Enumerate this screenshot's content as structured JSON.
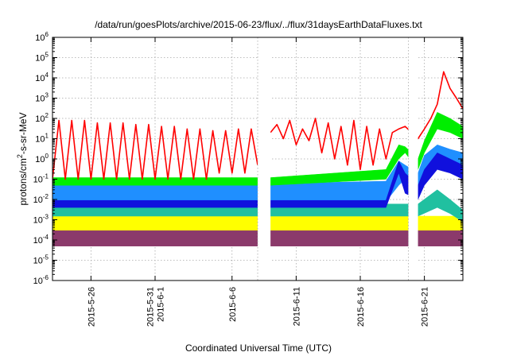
{
  "chart_data": {
    "type": "line",
    "title": "/data/run/goesPlots/archive/2015-06-23/flux/../flux/31daysEarthDataFluxes.txt",
    "xlabel": "Coordinated Universal Time (UTC)",
    "ylabel_parts": [
      "protons/cm",
      "2",
      "-s-sr-MeV"
    ],
    "yscale": "log",
    "ylim": [
      1e-06,
      1000000.0
    ],
    "xlim": [
      "2015-05-23",
      "2015-06-24"
    ],
    "grid": true,
    "y_ticks": [
      {
        "value": 1e-06,
        "base": "10",
        "exp": "-6"
      },
      {
        "value": 1e-05,
        "base": "10",
        "exp": "-5"
      },
      {
        "value": 0.0001,
        "base": "10",
        "exp": "-4"
      },
      {
        "value": 0.001,
        "base": "10",
        "exp": "-3"
      },
      {
        "value": 0.01,
        "base": "10",
        "exp": "-2"
      },
      {
        "value": 0.1,
        "base": "10",
        "exp": "-1"
      },
      {
        "value": 1,
        "base": "10",
        "exp": "0"
      },
      {
        "value": 10.0,
        "base": "10",
        "exp": "1"
      },
      {
        "value": 100.0,
        "base": "10",
        "exp": "2"
      },
      {
        "value": 1000.0,
        "base": "10",
        "exp": "3"
      },
      {
        "value": 10000.0,
        "base": "10",
        "exp": "4"
      },
      {
        "value": 100000.0,
        "base": "10",
        "exp": "5"
      },
      {
        "value": 1000000.0,
        "base": "10",
        "exp": "6"
      }
    ],
    "x_ticks": [
      {
        "date": "2015-05-26",
        "lines": [
          "2015-5-26"
        ]
      },
      {
        "date": "2015-05-31",
        "lines": [
          "2015-5-31",
          "2015-6-1"
        ]
      },
      {
        "date": "2015-06-06",
        "lines": [
          "2015-6-6"
        ]
      },
      {
        "date": "2015-06-11",
        "lines": [
          "2015-6-11"
        ]
      },
      {
        "date": "2015-06-16",
        "lines": [
          "2015-6-16"
        ]
      },
      {
        "date": "2015-06-21",
        "lines": [
          "2015-6-21"
        ]
      }
    ],
    "data_gaps": [
      [
        "2015-06-08",
        "2015-06-09"
      ],
      [
        "2015-06-19T18:00",
        "2015-06-20T12:00"
      ]
    ],
    "series": [
      {
        "color": "#8b3a6b",
        "style": "band",
        "points": [
          {
            "x": "2015-05-23",
            "lo": 5e-05,
            "hi": 0.0004
          },
          {
            "x": "2015-06-08",
            "lo": 5e-05,
            "hi": 0.0004
          },
          {
            "x": "2015-06-09",
            "lo": 5e-05,
            "hi": 0.0004
          },
          {
            "x": "2015-06-19T12:00",
            "lo": 5e-05,
            "hi": 0.0004
          },
          {
            "x": "2015-06-20T12:00",
            "lo": 5e-05,
            "hi": 0.0004
          },
          {
            "x": "2015-06-24",
            "lo": 5e-05,
            "hi": 0.0004
          }
        ]
      },
      {
        "color": "#ffff00",
        "style": "band",
        "points": [
          {
            "x": "2015-05-23",
            "lo": 0.0003,
            "hi": 0.0015
          },
          {
            "x": "2015-06-08",
            "lo": 0.0003,
            "hi": 0.0015
          },
          {
            "x": "2015-06-09",
            "lo": 0.0003,
            "hi": 0.0015
          },
          {
            "x": "2015-06-19T12:00",
            "lo": 0.0003,
            "hi": 0.0015
          },
          {
            "x": "2015-06-20T12:00",
            "lo": 0.0003,
            "hi": 0.0015
          },
          {
            "x": "2015-06-24",
            "lo": 0.0003,
            "hi": 0.0015
          }
        ]
      },
      {
        "color": "#20c0a0",
        "style": "band",
        "points": [
          {
            "x": "2015-05-23",
            "lo": 0.0015,
            "hi": 0.006
          },
          {
            "x": "2015-06-08",
            "lo": 0.0015,
            "hi": 0.006
          },
          {
            "x": "2015-06-09",
            "lo": 0.0015,
            "hi": 0.006
          },
          {
            "x": "2015-06-19T12:00",
            "lo": 0.0015,
            "hi": 0.006
          },
          {
            "x": "2015-06-20T12:00",
            "lo": 0.0015,
            "hi": 0.006
          },
          {
            "x": "2015-06-22",
            "lo": 0.004,
            "hi": 0.03
          },
          {
            "x": "2015-06-23",
            "lo": 0.002,
            "hi": 0.01
          },
          {
            "x": "2015-06-24",
            "lo": 0.0008,
            "hi": 0.003
          }
        ]
      },
      {
        "color": "#1f8fff",
        "style": "band",
        "points": [
          {
            "x": "2015-05-23",
            "lo": 0.006,
            "hi": 0.06
          },
          {
            "x": "2015-06-08",
            "lo": 0.006,
            "hi": 0.06
          },
          {
            "x": "2015-06-09",
            "lo": 0.006,
            "hi": 0.06
          },
          {
            "x": "2015-06-18",
            "lo": 0.008,
            "hi": 0.08
          },
          {
            "x": "2015-06-19",
            "lo": 0.05,
            "hi": 0.8
          },
          {
            "x": "2015-06-19T12:00",
            "lo": 0.1,
            "hi": 0.5
          },
          {
            "x": "2015-06-20T12:00",
            "lo": 0.05,
            "hi": 0.2
          },
          {
            "x": "2015-06-21",
            "lo": 0.3,
            "hi": 1.5
          },
          {
            "x": "2015-06-22",
            "lo": 1,
            "hi": 5
          },
          {
            "x": "2015-06-23",
            "lo": 0.5,
            "hi": 3
          },
          {
            "x": "2015-06-24",
            "lo": 0.5,
            "hi": 2
          }
        ]
      },
      {
        "color": "#1010dd",
        "style": "band",
        "points": [
          {
            "x": "2015-05-23",
            "lo": 0.004,
            "hi": 0.009
          },
          {
            "x": "2015-06-08",
            "lo": 0.004,
            "hi": 0.009
          },
          {
            "x": "2015-06-09",
            "lo": 0.004,
            "hi": 0.009
          },
          {
            "x": "2015-06-18",
            "lo": 0.004,
            "hi": 0.009
          },
          {
            "x": "2015-06-19",
            "lo": 0.2,
            "hi": 0.8
          },
          {
            "x": "2015-06-19T12:00",
            "lo": 0.02,
            "hi": 0.2
          },
          {
            "x": "2015-06-20T12:00",
            "lo": 0.01,
            "hi": 0.05
          },
          {
            "x": "2015-06-21",
            "lo": 0.05,
            "hi": 0.3
          },
          {
            "x": "2015-06-22",
            "lo": 0.3,
            "hi": 2
          },
          {
            "x": "2015-06-23",
            "lo": 0.2,
            "hi": 1
          },
          {
            "x": "2015-06-24",
            "lo": 0.1,
            "hi": 0.5
          }
        ]
      },
      {
        "color": "#00ee00",
        "style": "band",
        "points": [
          {
            "x": "2015-05-23",
            "lo": 0.05,
            "hi": 0.12
          },
          {
            "x": "2015-06-08",
            "lo": 0.05,
            "hi": 0.12
          },
          {
            "x": "2015-06-09",
            "lo": 0.05,
            "hi": 0.12
          },
          {
            "x": "2015-06-18",
            "lo": 0.1,
            "hi": 0.3
          },
          {
            "x": "2015-06-19",
            "lo": 1,
            "hi": 5
          },
          {
            "x": "2015-06-19T12:00",
            "lo": 2,
            "hi": 4
          },
          {
            "x": "2015-06-20T12:00",
            "lo": 0.3,
            "hi": 1
          },
          {
            "x": "2015-06-21",
            "lo": 2,
            "hi": 8
          },
          {
            "x": "2015-06-22",
            "lo": 30,
            "hi": 200
          },
          {
            "x": "2015-06-23",
            "lo": 20,
            "hi": 100
          },
          {
            "x": "2015-06-24",
            "lo": 10,
            "hi": 40
          }
        ]
      },
      {
        "color": "#ff0000",
        "style": "line",
        "x": [
          "2015-05-23",
          "2015-05-23T12:00",
          "2015-05-24",
          "2015-05-24T12:00",
          "2015-05-25",
          "2015-05-25T12:00",
          "2015-05-26",
          "2015-05-26T12:00",
          "2015-05-27",
          "2015-05-27T12:00",
          "2015-05-28",
          "2015-05-28T12:00",
          "2015-05-29",
          "2015-05-29T12:00",
          "2015-05-30",
          "2015-05-30T12:00",
          "2015-05-31",
          "2015-05-31T12:00",
          "2015-06-01",
          "2015-06-01T12:00",
          "2015-06-02",
          "2015-06-02T12:00",
          "2015-06-03",
          "2015-06-03T12:00",
          "2015-06-04",
          "2015-06-04T12:00",
          "2015-06-05",
          "2015-06-05T12:00",
          "2015-06-06",
          "2015-06-06T12:00",
          "2015-06-07",
          "2015-06-07T12:00",
          "2015-06-08",
          null,
          "2015-06-09",
          "2015-06-09T12:00",
          "2015-06-10",
          "2015-06-10T12:00",
          "2015-06-11",
          "2015-06-11T12:00",
          "2015-06-12",
          "2015-06-12T12:00",
          "2015-06-13",
          "2015-06-13T12:00",
          "2015-06-14",
          "2015-06-14T12:00",
          "2015-06-15",
          "2015-06-15T12:00",
          "2015-06-16",
          "2015-06-16T12:00",
          "2015-06-17",
          "2015-06-17T12:00",
          "2015-06-18",
          "2015-06-18T12:00",
          "2015-06-19",
          "2015-06-19T12:00",
          "2015-06-20T12:00",
          "2015-06-21",
          "2015-06-21T12:00",
          "2015-06-22",
          "2015-06-22T12:00",
          "2015-06-23",
          "2015-06-23T12:00",
          "2015-06-24"
        ],
        "y": [
          0.1,
          80,
          0.1,
          80,
          0.1,
          80,
          0.1,
          60,
          0.1,
          60,
          0.1,
          60,
          0.1,
          50,
          0.1,
          50,
          0.1,
          40,
          0.1,
          40,
          0.1,
          30,
          0.1,
          30,
          0.1,
          25,
          0.2,
          25,
          0.2,
          30,
          0.2,
          30,
          0.5,
          null,
          20,
          50,
          10,
          80,
          5,
          30,
          8,
          100,
          2,
          60,
          1,
          40,
          0.5,
          80,
          0.3,
          40,
          0.5,
          30,
          1,
          20,
          30,
          40,
          10,
          30,
          100,
          500,
          20000,
          3000,
          1000,
          300
        ]
      }
    ]
  }
}
